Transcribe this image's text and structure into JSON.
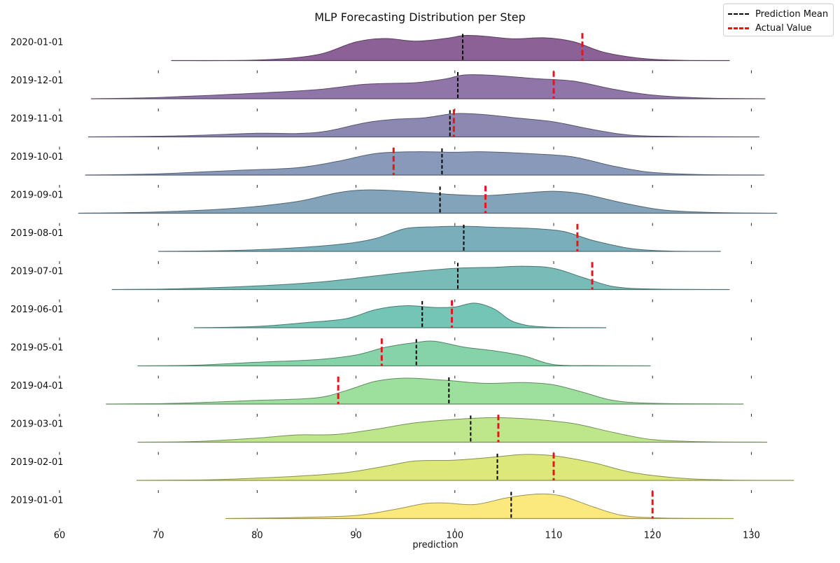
{
  "chart_data": {
    "type": "area",
    "title": "MLP Forecasting Distribution per Step",
    "xlabel": "prediction",
    "ylabel": "",
    "xlim": [
      60,
      133
    ],
    "xticks": [
      60,
      70,
      80,
      90,
      100,
      110,
      120,
      130
    ],
    "legend": {
      "placement": "top-right",
      "entries": [
        {
          "label": "Prediction Mean",
          "color": "#000000",
          "style": "dashed"
        },
        {
          "label": "Actual Value",
          "color": "#e8141c",
          "style": "dashed"
        }
      ]
    },
    "series": [
      {
        "name": "2020-01-01",
        "range": [
          71.3,
          127.8
        ],
        "mean": 100.8,
        "actual": 112.9,
        "color": "#8c6196",
        "density": [
          [
            71.3,
            0
          ],
          [
            80,
            0.02
          ],
          [
            86,
            0.22
          ],
          [
            90,
            0.72
          ],
          [
            93,
            0.85
          ],
          [
            96,
            0.75
          ],
          [
            99,
            0.85
          ],
          [
            101,
            0.97
          ],
          [
            103,
            0.94
          ],
          [
            106,
            0.84
          ],
          [
            109,
            0.88
          ],
          [
            112,
            0.73
          ],
          [
            115,
            0.33
          ],
          [
            119,
            0.08
          ],
          [
            123,
            0.01
          ],
          [
            127.8,
            0
          ]
        ]
      },
      {
        "name": "2019-12-01",
        "range": [
          63.2,
          131.4
        ],
        "mean": 100.3,
        "actual": 110.0,
        "color": "#8f75a8",
        "density": [
          [
            63.2,
            0
          ],
          [
            70,
            0.05
          ],
          [
            78,
            0.18
          ],
          [
            86,
            0.35
          ],
          [
            91,
            0.56
          ],
          [
            96,
            0.62
          ],
          [
            99,
            0.76
          ],
          [
            101,
            0.92
          ],
          [
            104,
            0.9
          ],
          [
            108,
            0.78
          ],
          [
            112,
            0.68
          ],
          [
            116,
            0.37
          ],
          [
            120,
            0.14
          ],
          [
            125,
            0.03
          ],
          [
            131.4,
            0
          ]
        ]
      },
      {
        "name": "2019-11-01",
        "range": [
          62.9,
          130.8
        ],
        "mean": 99.5,
        "actual": 99.9,
        "color": "#8d88b2",
        "density": [
          [
            62.9,
            0
          ],
          [
            72,
            0.04
          ],
          [
            80,
            0.14
          ],
          [
            84,
            0.13
          ],
          [
            87,
            0.22
          ],
          [
            91,
            0.55
          ],
          [
            94,
            0.68
          ],
          [
            97,
            0.74
          ],
          [
            100,
            0.9
          ],
          [
            103,
            0.86
          ],
          [
            106,
            0.74
          ],
          [
            110,
            0.58
          ],
          [
            114,
            0.28
          ],
          [
            118,
            0.06
          ],
          [
            124,
            0.01
          ],
          [
            130.8,
            0
          ]
        ]
      },
      {
        "name": "2019-10-01",
        "range": [
          62.6,
          131.3
        ],
        "mean": 98.7,
        "actual": 93.8,
        "color": "#8899b9",
        "density": [
          [
            62.6,
            0
          ],
          [
            70,
            0.05
          ],
          [
            78,
            0.18
          ],
          [
            84,
            0.28
          ],
          [
            88,
            0.52
          ],
          [
            92,
            0.83
          ],
          [
            96,
            0.9
          ],
          [
            100,
            0.88
          ],
          [
            103,
            0.9
          ],
          [
            108,
            0.82
          ],
          [
            112,
            0.7
          ],
          [
            116,
            0.35
          ],
          [
            120,
            0.1
          ],
          [
            125,
            0.02
          ],
          [
            131.3,
            0
          ]
        ]
      },
      {
        "name": "2019-09-01",
        "range": [
          61.9,
          132.6
        ],
        "mean": 98.5,
        "actual": 103.1,
        "color": "#82a3ba",
        "density": [
          [
            61.9,
            0
          ],
          [
            70,
            0.05
          ],
          [
            78,
            0.2
          ],
          [
            84,
            0.45
          ],
          [
            88,
            0.78
          ],
          [
            91,
            0.9
          ],
          [
            95,
            0.85
          ],
          [
            99,
            0.74
          ],
          [
            103,
            0.68
          ],
          [
            107,
            0.78
          ],
          [
            110,
            0.85
          ],
          [
            113,
            0.74
          ],
          [
            117,
            0.4
          ],
          [
            121,
            0.13
          ],
          [
            126,
            0.03
          ],
          [
            132.6,
            0
          ]
        ]
      },
      {
        "name": "2019-08-01",
        "range": [
          70.0,
          126.9
        ],
        "mean": 100.9,
        "actual": 112.4,
        "color": "#7aaebb",
        "density": [
          [
            70,
            0
          ],
          [
            78,
            0.04
          ],
          [
            84,
            0.14
          ],
          [
            89,
            0.3
          ],
          [
            92,
            0.5
          ],
          [
            95,
            0.88
          ],
          [
            98,
            0.95
          ],
          [
            101,
            0.97
          ],
          [
            104,
            0.93
          ],
          [
            108,
            0.88
          ],
          [
            111,
            0.77
          ],
          [
            114,
            0.42
          ],
          [
            118,
            0.1
          ],
          [
            122,
            0.01
          ],
          [
            126.9,
            0
          ]
        ]
      },
      {
        "name": "2019-07-01",
        "range": [
          65.3,
          127.8
        ],
        "mean": 100.3,
        "actual": 113.9,
        "color": "#78bbb7",
        "density": [
          [
            65.3,
            0
          ],
          [
            72,
            0.03
          ],
          [
            80,
            0.14
          ],
          [
            86,
            0.28
          ],
          [
            90,
            0.44
          ],
          [
            95,
            0.66
          ],
          [
            100,
            0.82
          ],
          [
            104,
            0.86
          ],
          [
            107,
            0.9
          ],
          [
            110,
            0.82
          ],
          [
            113,
            0.46
          ],
          [
            116,
            0.12
          ],
          [
            120,
            0.02
          ],
          [
            127.8,
            0
          ]
        ]
      },
      {
        "name": "2019-06-01",
        "range": [
          73.6,
          115.3
        ],
        "mean": 96.7,
        "actual": 99.7,
        "color": "#74c5b5",
        "density": [
          [
            73.6,
            0
          ],
          [
            80,
            0.05
          ],
          [
            85,
            0.2
          ],
          [
            89,
            0.35
          ],
          [
            92,
            0.7
          ],
          [
            95,
            0.85
          ],
          [
            98,
            0.78
          ],
          [
            100,
            0.8
          ],
          [
            102,
            0.95
          ],
          [
            104,
            0.72
          ],
          [
            106,
            0.22
          ],
          [
            109,
            0.03
          ],
          [
            115.3,
            0
          ]
        ]
      },
      {
        "name": "2019-05-01",
        "range": [
          67.9,
          119.8
        ],
        "mean": 96.1,
        "actual": 92.6,
        "color": "#86d3aa",
        "density": [
          [
            67.9,
            0
          ],
          [
            74,
            0.03
          ],
          [
            80,
            0.14
          ],
          [
            86,
            0.24
          ],
          [
            90,
            0.42
          ],
          [
            93,
            0.72
          ],
          [
            96,
            0.9
          ],
          [
            98,
            0.95
          ],
          [
            101,
            0.72
          ],
          [
            104,
            0.58
          ],
          [
            107,
            0.38
          ],
          [
            110,
            0.05
          ],
          [
            114,
            0.01
          ],
          [
            119.8,
            0
          ]
        ]
      },
      {
        "name": "2019-04-01",
        "range": [
          64.7,
          129.2
        ],
        "mean": 99.4,
        "actual": 88.2,
        "color": "#9ddf9c",
        "density": [
          [
            64.7,
            0
          ],
          [
            72,
            0.03
          ],
          [
            80,
            0.14
          ],
          [
            86,
            0.24
          ],
          [
            89,
            0.52
          ],
          [
            92,
            0.88
          ],
          [
            95,
            1.0
          ],
          [
            99,
            0.92
          ],
          [
            103,
            0.8
          ],
          [
            107,
            0.83
          ],
          [
            110,
            0.74
          ],
          [
            113,
            0.45
          ],
          [
            116,
            0.14
          ],
          [
            120,
            0.03
          ],
          [
            129.2,
            0
          ]
        ]
      },
      {
        "name": "2019-03-01",
        "range": [
          67.9,
          131.6
        ],
        "mean": 101.6,
        "actual": 104.4,
        "color": "#bee68a",
        "density": [
          [
            67.9,
            0
          ],
          [
            74,
            0.03
          ],
          [
            80,
            0.16
          ],
          [
            84,
            0.28
          ],
          [
            88,
            0.3
          ],
          [
            92,
            0.5
          ],
          [
            96,
            0.75
          ],
          [
            100,
            0.88
          ],
          [
            104,
            0.95
          ],
          [
            108,
            0.88
          ],
          [
            112,
            0.72
          ],
          [
            116,
            0.38
          ],
          [
            120,
            0.1
          ],
          [
            125,
            0.02
          ],
          [
            131.6,
            0
          ]
        ]
      },
      {
        "name": "2019-02-01",
        "range": [
          67.8,
          134.3
        ],
        "mean": 104.3,
        "actual": 110.0,
        "color": "#dde87a",
        "density": [
          [
            67.8,
            0
          ],
          [
            76,
            0.03
          ],
          [
            84,
            0.16
          ],
          [
            89,
            0.3
          ],
          [
            93,
            0.55
          ],
          [
            96,
            0.75
          ],
          [
            100,
            0.78
          ],
          [
            104,
            0.9
          ],
          [
            107,
            1.0
          ],
          [
            110,
            0.95
          ],
          [
            114,
            0.68
          ],
          [
            118,
            0.3
          ],
          [
            123,
            0.08
          ],
          [
            128,
            0.01
          ],
          [
            134.3,
            0
          ]
        ]
      },
      {
        "name": "2019-01-01",
        "range": [
          76.8,
          128.2
        ],
        "mean": 105.7,
        "actual": 120.0,
        "color": "#fbe97e",
        "density": [
          [
            76.8,
            0
          ],
          [
            84,
            0.04
          ],
          [
            90,
            0.12
          ],
          [
            94,
            0.36
          ],
          [
            97,
            0.58
          ],
          [
            99,
            0.6
          ],
          [
            102,
            0.54
          ],
          [
            105,
            0.78
          ],
          [
            107,
            0.9
          ],
          [
            109,
            0.95
          ],
          [
            111,
            0.85
          ],
          [
            114,
            0.45
          ],
          [
            117,
            0.12
          ],
          [
            121,
            0.02
          ],
          [
            128.2,
            0
          ]
        ]
      }
    ]
  }
}
